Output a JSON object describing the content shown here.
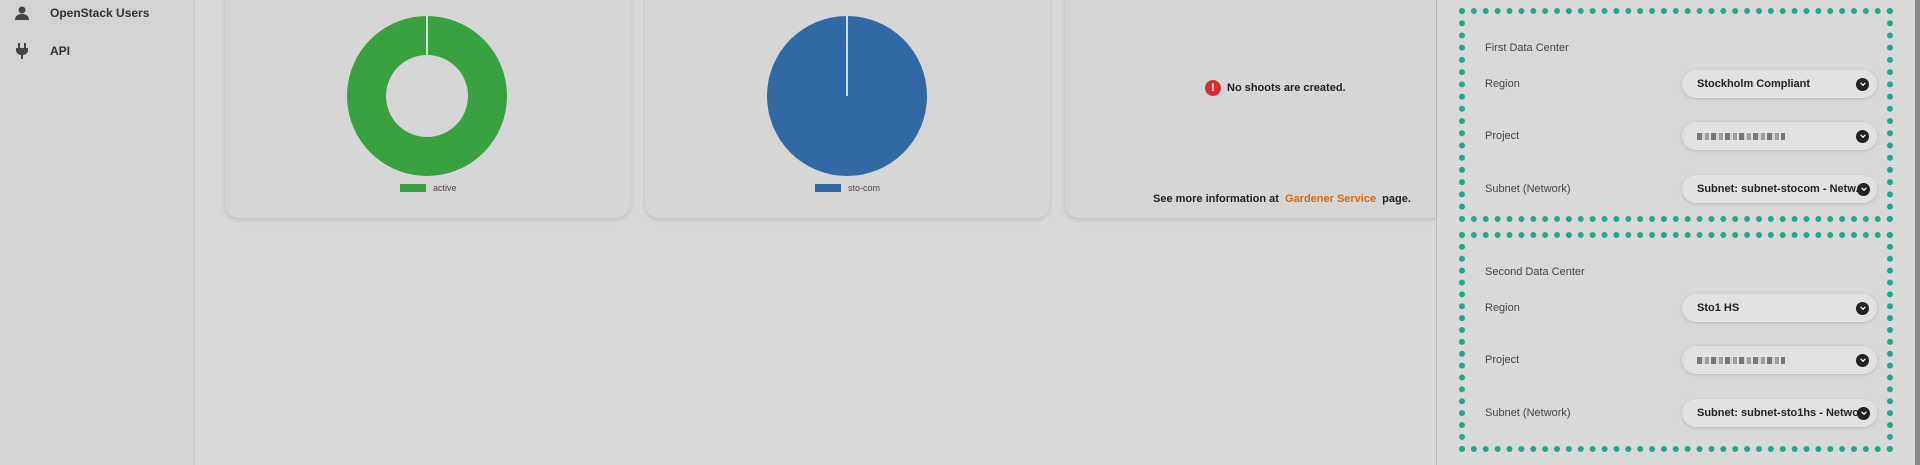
{
  "sidebar": {
    "items": [
      {
        "label": "OpenStack Users",
        "icon": "user-icon"
      },
      {
        "label": "API",
        "icon": "plug-icon"
      }
    ]
  },
  "cards": {
    "status": {
      "legend": "active",
      "color": "#3aa141"
    },
    "region": {
      "legend": "sto-com",
      "color": "#3169a5"
    },
    "shoots": {
      "message": "No shoots are created.",
      "see_more_prefix": "See more information at",
      "link_text": "Gardener Service",
      "see_more_suffix": "page."
    }
  },
  "chart_data": [
    {
      "type": "pie",
      "style": "donut",
      "labels": [
        "active"
      ],
      "values": [
        100
      ],
      "colors": [
        "#3aa141"
      ]
    },
    {
      "type": "pie",
      "labels": [
        "sto-com"
      ],
      "values": [
        100
      ],
      "colors": [
        "#3169a5"
      ]
    }
  ],
  "panel": {
    "first": {
      "title": "First Data Center",
      "region_label": "Region",
      "region_value": "Stockholm Compliant",
      "project_label": "Project",
      "project_value": "",
      "subnet_label": "Subnet (Network)",
      "subnet_value": "Subnet: subnet-stocom - Netw..."
    },
    "second": {
      "title": "Second Data Center",
      "region_label": "Region",
      "region_value": "Sto1 HS",
      "project_label": "Project",
      "project_value": "",
      "subnet_label": "Subnet (Network)",
      "subnet_value": "Subnet: subnet-sto1hs - Netwo..."
    },
    "accent_color": "#1fa88c"
  }
}
